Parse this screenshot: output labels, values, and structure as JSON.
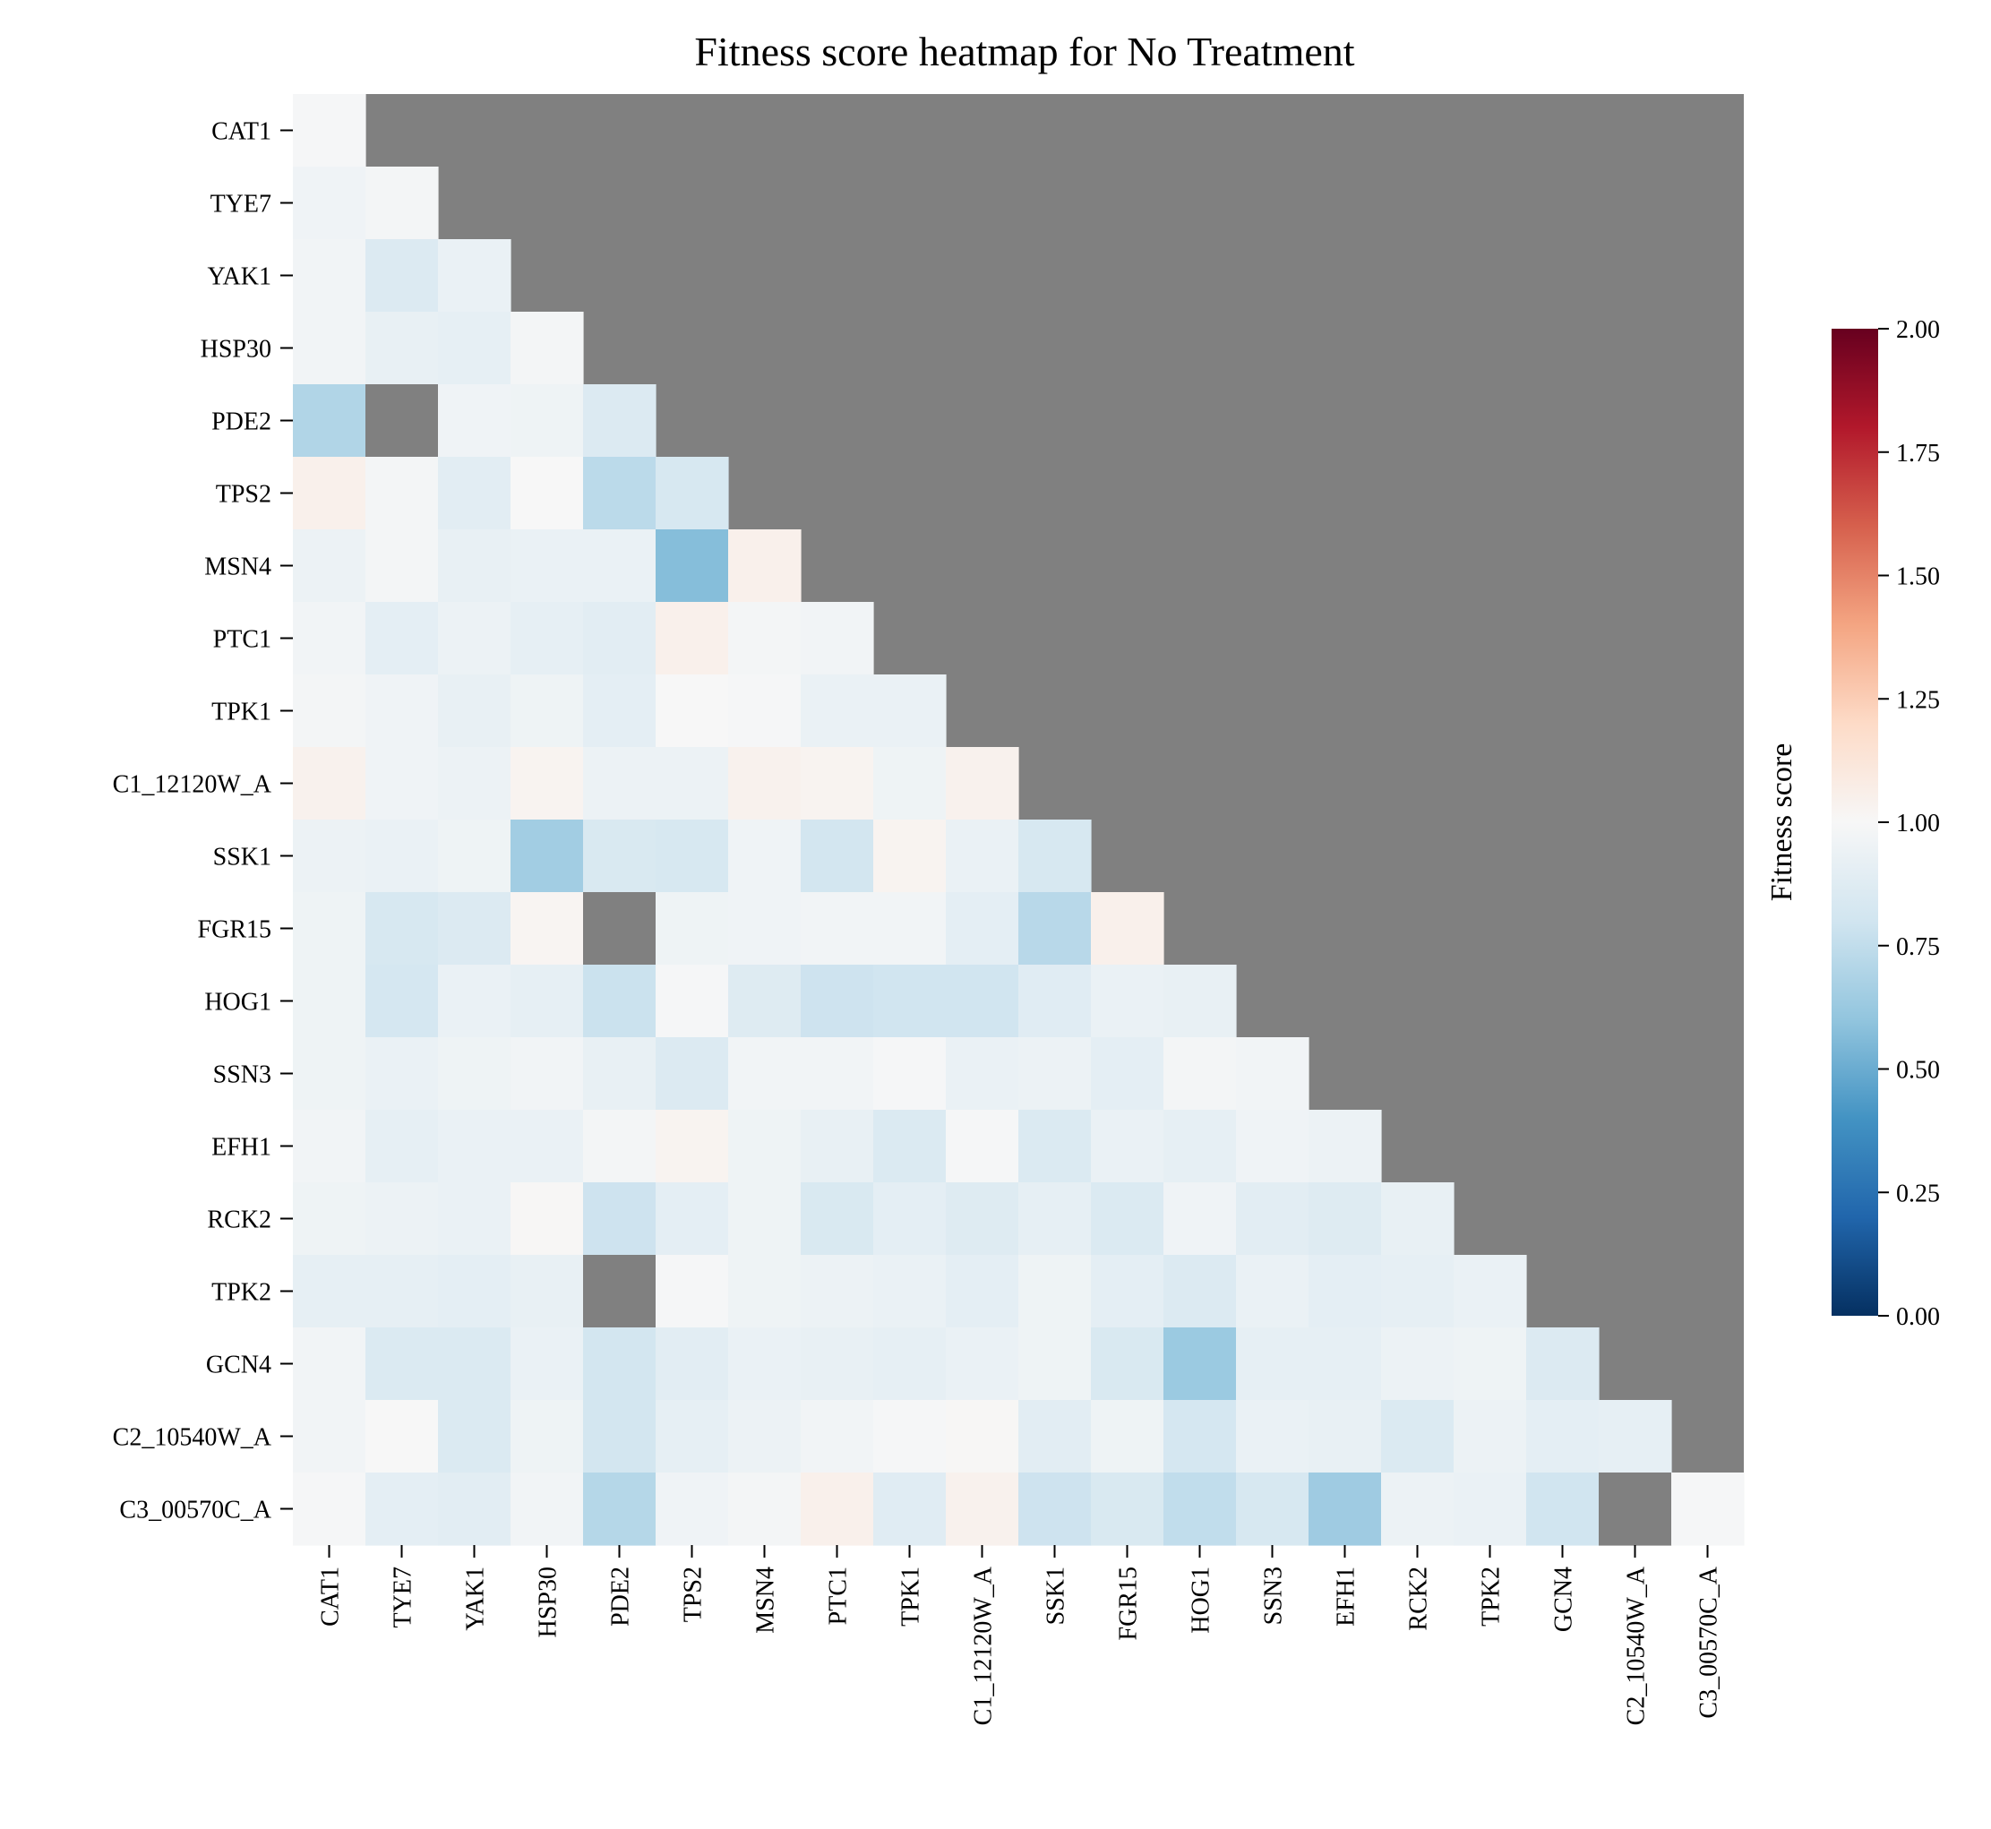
{
  "chart_data": {
    "type": "heatmap",
    "title": "Fitness score heatmap for No Treatment",
    "genes": [
      "CAT1",
      "TYE7",
      "YAK1",
      "HSP30",
      "PDE2",
      "TPS2",
      "MSN4",
      "PTC1",
      "TPK1",
      "C1_12120W_A",
      "SSK1",
      "FGR15",
      "HOG1",
      "SSN3",
      "EFH1",
      "RCK2",
      "TPK2",
      "GCN4",
      "C2_10540W_A",
      "C3_00570C_A"
    ],
    "matrix": [
      [
        0.99
      ],
      [
        0.96,
        0.98
      ],
      [
        0.97,
        0.86,
        0.93
      ],
      [
        0.97,
        0.92,
        0.91,
        0.98
      ],
      [
        0.7,
        null,
        0.96,
        0.95,
        0.86
      ],
      [
        1.05,
        0.98,
        0.89,
        1.0,
        0.73,
        0.83
      ],
      [
        0.94,
        0.98,
        0.92,
        0.93,
        0.93,
        0.57,
        1.05
      ],
      [
        0.97,
        0.9,
        0.94,
        0.91,
        0.89,
        1.05,
        0.98,
        0.97
      ],
      [
        0.98,
        0.96,
        0.92,
        0.95,
        0.9,
        1.0,
        0.99,
        0.93,
        0.93
      ],
      [
        1.04,
        0.96,
        0.94,
        1.03,
        0.94,
        0.94,
        1.04,
        1.03,
        0.95,
        1.04
      ],
      [
        0.94,
        0.93,
        0.95,
        0.65,
        0.84,
        0.83,
        0.96,
        0.81,
        1.03,
        0.93,
        0.83
      ],
      [
        0.95,
        0.83,
        0.86,
        1.02,
        null,
        0.95,
        0.96,
        0.97,
        0.97,
        0.9,
        0.72,
        1.05
      ],
      [
        0.95,
        0.82,
        0.93,
        0.91,
        0.78,
        0.99,
        0.87,
        0.79,
        0.8,
        0.8,
        0.88,
        0.93,
        0.92
      ],
      [
        0.95,
        0.93,
        0.95,
        0.97,
        0.92,
        0.86,
        0.97,
        0.97,
        0.99,
        0.93,
        0.94,
        0.9,
        0.98,
        0.97
      ],
      [
        0.97,
        0.91,
        0.93,
        0.93,
        0.98,
        1.03,
        0.95,
        0.92,
        0.85,
        0.99,
        0.85,
        0.93,
        0.91,
        0.96,
        0.94
      ],
      [
        0.95,
        0.94,
        0.93,
        1.01,
        0.79,
        0.9,
        0.95,
        0.84,
        0.9,
        0.87,
        0.91,
        0.85,
        0.96,
        0.89,
        0.87,
        0.92
      ],
      [
        0.91,
        0.91,
        0.9,
        0.92,
        null,
        0.99,
        0.95,
        0.94,
        0.93,
        0.9,
        0.95,
        0.9,
        0.86,
        0.93,
        0.9,
        0.91,
        0.93
      ],
      [
        0.97,
        0.85,
        0.85,
        0.93,
        0.81,
        0.89,
        0.93,
        0.92,
        0.91,
        0.93,
        0.95,
        0.84,
        0.63,
        0.91,
        0.91,
        0.94,
        0.95,
        0.86
      ],
      [
        0.97,
        1.0,
        0.85,
        0.95,
        0.81,
        0.91,
        0.94,
        0.97,
        0.99,
        1.01,
        0.89,
        0.95,
        0.82,
        0.93,
        0.92,
        0.85,
        0.94,
        0.9,
        0.91
      ],
      [
        0.99,
        0.9,
        0.89,
        0.97,
        0.71,
        0.96,
        0.98,
        1.05,
        0.88,
        1.04,
        0.79,
        0.84,
        0.75,
        0.83,
        0.64,
        0.94,
        0.93,
        0.8,
        null,
        0.99
      ]
    ],
    "vmin": 0.0,
    "vmax": 2.0,
    "colormap": "RdBu_r",
    "masked_color": "#808080",
    "colorbar": {
      "label": "Fitness score",
      "ticks": [
        "0.00",
        "0.25",
        "0.50",
        "0.75",
        "1.00",
        "1.25",
        "1.50",
        "1.75",
        "2.00"
      ]
    }
  }
}
